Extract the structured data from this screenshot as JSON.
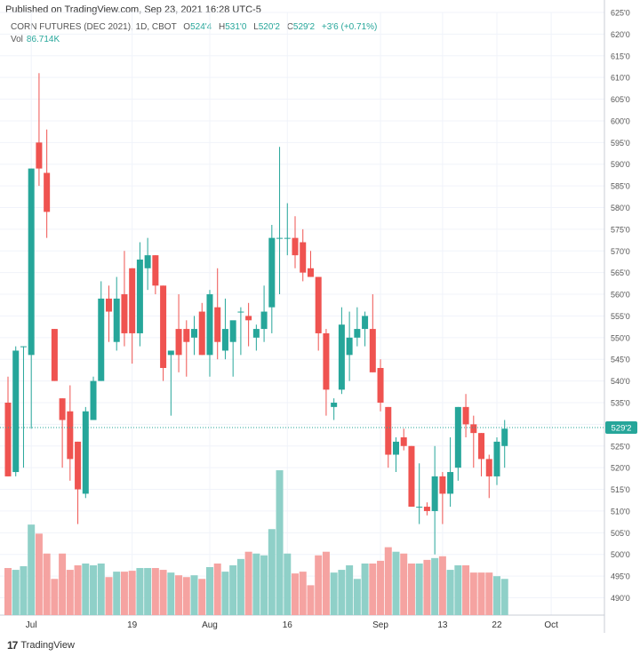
{
  "published": "Published on TradingView.com, Sep 23, 2021 16:28 UTC-5",
  "legend": {
    "symbol": "CORN FUTURES (DEC 2021), 1D, CBOT",
    "o_label": "O",
    "o": "524'4",
    "h_label": "H",
    "h": "531'0",
    "l_label": "L",
    "l": "520'2",
    "c_label": "C",
    "c": "529'2",
    "change": "+3'6 (+0.71%)",
    "vol_label": "Vol",
    "vol": "86.714K"
  },
  "brand": "TradingView",
  "colors": {
    "up": "#26a69a",
    "down": "#ef5350",
    "up_vol": "#8fd0c8",
    "down_vol": "#f5a3a1",
    "grid": "#f0f3fa"
  },
  "chart_data": {
    "type": "candlestick",
    "y_range": [
      486,
      625
    ],
    "y_ticks": [
      "490'0",
      "495'0",
      "500'0",
      "505'0",
      "510'0",
      "515'0",
      "520'0",
      "525'0",
      "530'0",
      "535'0",
      "540'0",
      "545'0",
      "550'0",
      "555'0",
      "560'0",
      "565'0",
      "570'0",
      "575'0",
      "580'0",
      "585'0",
      "590'0",
      "595'0",
      "600'0",
      "605'0",
      "610'0",
      "615'0",
      "620'0",
      "625'0"
    ],
    "x_tick_labels": [
      {
        "label": "Jul",
        "index": 3
      },
      {
        "label": "19",
        "index": 16
      },
      {
        "label": "Aug",
        "index": 26
      },
      {
        "label": "16",
        "index": 36
      },
      {
        "label": "Sep",
        "index": 48
      },
      {
        "label": "13",
        "index": 56
      },
      {
        "label": "22",
        "index": 63
      },
      {
        "label": "Oct",
        "index": 70
      }
    ],
    "last_price_label": "529'2",
    "last_price": 529.25,
    "candles": [
      {
        "o": 535,
        "h": 541,
        "l": 518,
        "c": 518,
        "v": 0.52
      },
      {
        "o": 519,
        "h": 548,
        "l": 518,
        "c": 547,
        "v": 0.5
      },
      {
        "o": 548,
        "h": 548,
        "l": 520,
        "c": 548,
        "v": 0.54
      },
      {
        "o": 546,
        "h": 589,
        "l": 529,
        "c": 589,
        "v": 1.0
      },
      {
        "o": 595,
        "h": 611,
        "l": 585,
        "c": 589,
        "v": 0.9
      },
      {
        "o": 588,
        "h": 598,
        "l": 573,
        "c": 579,
        "v": 0.68
      },
      {
        "o": 552,
        "h": 552,
        "l": 540,
        "c": 540,
        "v": 0.4
      },
      {
        "o": 536,
        "h": 536,
        "l": 520,
        "c": 531,
        "v": 0.68
      },
      {
        "o": 533,
        "h": 539,
        "l": 517,
        "c": 522,
        "v": 0.5
      },
      {
        "o": 526,
        "h": 526,
        "l": 507,
        "c": 515,
        "v": 0.55
      },
      {
        "o": 514,
        "h": 534,
        "l": 513,
        "c": 533,
        "v": 0.57
      },
      {
        "o": 531,
        "h": 541,
        "l": 531,
        "c": 540,
        "v": 0.55
      },
      {
        "o": 540,
        "h": 563,
        "l": 540,
        "c": 559,
        "v": 0.57
      },
      {
        "o": 559,
        "h": 562,
        "l": 549,
        "c": 556,
        "v": 0.42
      },
      {
        "o": 549,
        "h": 564,
        "l": 547,
        "c": 559,
        "v": 0.48
      },
      {
        "o": 560,
        "h": 570,
        "l": 548,
        "c": 551,
        "v": 0.48
      },
      {
        "o": 566,
        "h": 566,
        "l": 544,
        "c": 551,
        "v": 0.49
      },
      {
        "o": 551,
        "h": 572,
        "l": 548,
        "c": 568,
        "v": 0.52
      },
      {
        "o": 566,
        "h": 573,
        "l": 561,
        "c": 569,
        "v": 0.52
      },
      {
        "o": 569,
        "h": 569,
        "l": 560,
        "c": 562,
        "v": 0.52
      },
      {
        "o": 562,
        "h": 562,
        "l": 540,
        "c": 543,
        "v": 0.5
      },
      {
        "o": 546,
        "h": 547,
        "l": 532,
        "c": 547,
        "v": 0.47
      },
      {
        "o": 552,
        "h": 560,
        "l": 542,
        "c": 546,
        "v": 0.44
      },
      {
        "o": 552,
        "h": 554,
        "l": 541,
        "c": 549,
        "v": 0.42
      },
      {
        "o": 550,
        "h": 555,
        "l": 546,
        "c": 552,
        "v": 0.44
      },
      {
        "o": 556,
        "h": 558,
        "l": 546,
        "c": 546,
        "v": 0.4
      },
      {
        "o": 546,
        "h": 561,
        "l": 541,
        "c": 560,
        "v": 0.53
      },
      {
        "o": 557,
        "h": 566,
        "l": 545,
        "c": 549,
        "v": 0.57
      },
      {
        "o": 547,
        "h": 559,
        "l": 545,
        "c": 552,
        "v": 0.48
      },
      {
        "o": 549,
        "h": 553,
        "l": 541,
        "c": 554,
        "v": 0.55
      },
      {
        "o": 556,
        "h": 557,
        "l": 546,
        "c": 556,
        "v": 0.62
      },
      {
        "o": 555,
        "h": 558,
        "l": 548,
        "c": 554,
        "v": 0.7
      },
      {
        "o": 550,
        "h": 553,
        "l": 547,
        "c": 552,
        "v": 0.68
      },
      {
        "o": 552,
        "h": 562,
        "l": 549,
        "c": 556,
        "v": 0.66
      },
      {
        "o": 557,
        "h": 576,
        "l": 551,
        "c": 573,
        "v": 0.95
      },
      {
        "o": 573,
        "h": 594,
        "l": 560,
        "c": 573,
        "v": 1.6
      },
      {
        "o": 573,
        "h": 581,
        "l": 569,
        "c": 573,
        "v": 0.68
      },
      {
        "o": 573,
        "h": 578,
        "l": 566,
        "c": 569,
        "v": 0.46
      },
      {
        "o": 572,
        "h": 575,
        "l": 563,
        "c": 565,
        "v": 0.48
      },
      {
        "o": 566,
        "h": 570,
        "l": 564,
        "c": 564,
        "v": 0.33
      },
      {
        "o": 564,
        "h": 564,
        "l": 547,
        "c": 551,
        "v": 0.66
      },
      {
        "o": 551,
        "h": 552,
        "l": 532,
        "c": 538,
        "v": 0.7
      },
      {
        "o": 534,
        "h": 536,
        "l": 531,
        "c": 535,
        "v": 0.47
      },
      {
        "o": 538,
        "h": 557,
        "l": 537,
        "c": 553,
        "v": 0.5
      },
      {
        "o": 546,
        "h": 556,
        "l": 540,
        "c": 550,
        "v": 0.55
      },
      {
        "o": 550,
        "h": 557,
        "l": 548,
        "c": 552,
        "v": 0.4
      },
      {
        "o": 552,
        "h": 556,
        "l": 548,
        "c": 555,
        "v": 0.57
      },
      {
        "o": 552,
        "h": 560,
        "l": 542,
        "c": 542,
        "v": 0.57
      },
      {
        "o": 543,
        "h": 545,
        "l": 533,
        "c": 535,
        "v": 0.6
      },
      {
        "o": 534,
        "h": 534,
        "l": 520,
        "c": 523,
        "v": 0.75
      },
      {
        "o": 523,
        "h": 527,
        "l": 519,
        "c": 526,
        "v": 0.7
      },
      {
        "o": 527,
        "h": 529,
        "l": 524,
        "c": 525,
        "v": 0.68
      },
      {
        "o": 525,
        "h": 525,
        "l": 511,
        "c": 511,
        "v": 0.57
      },
      {
        "o": 511,
        "h": 521,
        "l": 507,
        "c": 511,
        "v": 0.57
      },
      {
        "o": 511,
        "h": 512,
        "l": 509,
        "c": 510,
        "v": 0.61
      },
      {
        "o": 510,
        "h": 525,
        "l": 500,
        "c": 518,
        "v": 0.63
      },
      {
        "o": 518,
        "h": 519,
        "l": 507,
        "c": 514,
        "v": 0.65
      },
      {
        "o": 514,
        "h": 527,
        "l": 511,
        "c": 519,
        "v": 0.5
      },
      {
        "o": 520,
        "h": 534,
        "l": 517,
        "c": 534,
        "v": 0.55
      },
      {
        "o": 534,
        "h": 537,
        "l": 527,
        "c": 530,
        "v": 0.55
      },
      {
        "o": 530,
        "h": 532,
        "l": 520,
        "c": 528,
        "v": 0.47
      },
      {
        "o": 528,
        "h": 528,
        "l": 518,
        "c": 522,
        "v": 0.47
      },
      {
        "o": 522,
        "h": 523,
        "l": 513,
        "c": 518,
        "v": 0.47
      },
      {
        "o": 518,
        "h": 527,
        "l": 516,
        "c": 526,
        "v": 0.43
      },
      {
        "o": 525,
        "h": 531,
        "l": 520,
        "c": 529,
        "v": 0.4
      }
    ]
  }
}
